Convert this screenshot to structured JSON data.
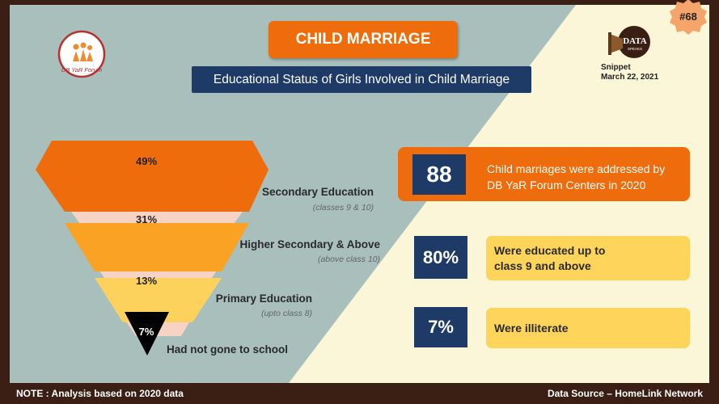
{
  "header": {
    "title": "CHILD MARRIAGE",
    "subtitle": "Educational Status of Girls Involved in Child Marriage"
  },
  "logo_left": {
    "text": "DB YaR Forum"
  },
  "logo_right": {
    "text": "DATA",
    "sub": "SPEAKS"
  },
  "snippet": {
    "label": "Snippet",
    "date": "March 22, 2021"
  },
  "badge": "#68",
  "chart_data": {
    "type": "funnel",
    "title": "Educational Status of Girls Involved in Child Marriage",
    "categories": [
      "Secondary Education",
      "Higher Secondary & Above",
      "Primary Education",
      "Had not gone to school"
    ],
    "category_notes": [
      "(classes 9 & 10)",
      "(above class 10)",
      "(upto class 8)",
      ""
    ],
    "values": [
      49,
      31,
      13,
      7
    ],
    "value_labels": [
      "49%",
      "31%",
      "13%",
      "7%"
    ],
    "colors": [
      "#ef6c0c",
      "#f9a224",
      "#fdd25c",
      "#000000"
    ]
  },
  "stats": [
    {
      "value": "88",
      "text_line1": "Child marriages were addressed by",
      "text_line2": "DB YaR Forum Centers in 2020"
    },
    {
      "value": "80%",
      "text_line1": "Were educated up to",
      "text_line2": "class 9 and above"
    },
    {
      "value": "7%",
      "text_line1": "Were illiterate",
      "text_line2": ""
    }
  ],
  "footer": {
    "note": "NOTE : Analysis based on 2020 data",
    "source": "Data Source – HomeLink Network"
  }
}
